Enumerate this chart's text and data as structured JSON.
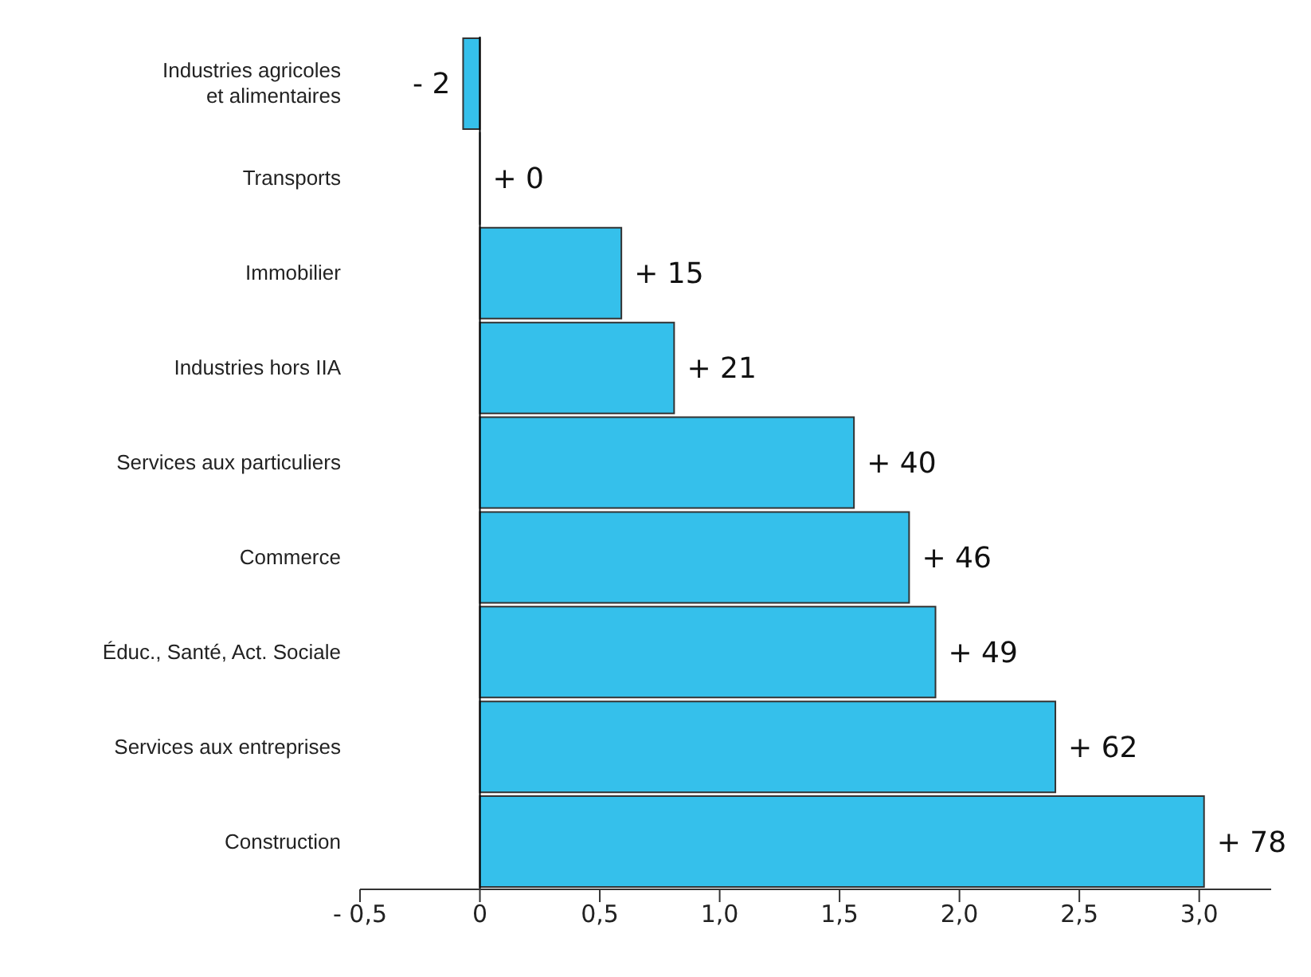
{
  "chart_data": {
    "type": "bar",
    "orientation": "horizontal",
    "categories": [
      "Industries agricoles\net alimentaires",
      "Transports",
      "Immobilier",
      "Industries hors IIA",
      "Services aux particuliers",
      "Commerce",
      "Éduc., Santé, Act. Sociale",
      "Services aux entreprises",
      "Construction"
    ],
    "values": [
      -0.07,
      0,
      0.59,
      0.81,
      1.56,
      1.79,
      1.9,
      2.4,
      3.02
    ],
    "annotations": [
      {
        "text": "- 2",
        "x": -0.07,
        "y": "Industries agricoles\net alimentaires"
      },
      {
        "text": "+ 0",
        "x": 0,
        "y": "Transports"
      },
      {
        "text": "+ 15",
        "x": 0.59,
        "y": "Immobilier"
      },
      {
        "text": "+ 21",
        "x": 0.81,
        "y": "Industries hors IIA"
      },
      {
        "text": "+ 40",
        "x": 1.56,
        "y": "Services aux particuliers"
      },
      {
        "text": "+ 46",
        "x": 1.79,
        "y": "Commerce"
      },
      {
        "text": "+ 49",
        "x": 1.9,
        "y": "Éduc., Santé, Act. Sociale"
      },
      {
        "text": "+ 62",
        "x": 2.4,
        "y": "Services aux entreprises"
      },
      {
        "text": "+ 78",
        "x": 3.02,
        "y": "Construction"
      }
    ],
    "color": "#35c0eb",
    "xlim": [
      -0.5,
      3.3
    ],
    "xticks": [
      {
        "value": -0.5,
        "label": "- 0,5"
      },
      {
        "value": 0,
        "label": "0"
      },
      {
        "value": 0.5,
        "label": "0,5"
      },
      {
        "value": 1,
        "label": "1,0"
      },
      {
        "value": 1.5,
        "label": "1,5"
      },
      {
        "value": 2,
        "label": "2,0"
      },
      {
        "value": 2.5,
        "label": "2,5"
      },
      {
        "value": 3,
        "label": "3,0"
      }
    ],
    "ref_lines": [
      {
        "axis": "x",
        "value": 0,
        "color": "#000000"
      }
    ],
    "grid": false,
    "legend": false
  }
}
